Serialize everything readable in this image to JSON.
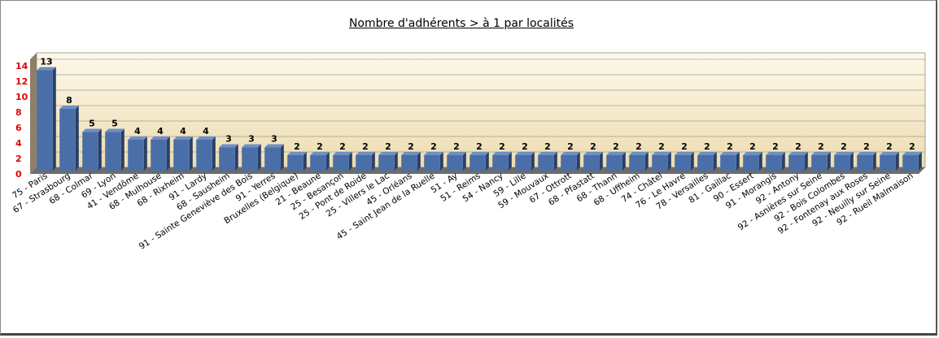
{
  "chart_data": {
    "type": "bar",
    "title": "Nombre d'adhérents  > à 1 par localités",
    "xlabel": "",
    "ylabel": "",
    "ylim": [
      0,
      14
    ],
    "yticks": [
      "0",
      "2",
      "4",
      "6",
      "8",
      "10",
      "12",
      "14"
    ],
    "grid": true,
    "legend": "none",
    "data_labels": true,
    "categories": [
      "75 - Paris",
      "67 - Strasbourg",
      "68 - Colmar",
      "69 - Lyon",
      "41 - Vendôme",
      "68 - Mulhouse",
      "68 - Rixheim",
      "91 - Lardy",
      "68 - Sausheim",
      "91 - Sainte Geneviève des Bois",
      "91 - Yerres",
      "Bruxelles (Belgique)",
      "21 - Beaune",
      "25 - Besançon",
      "25 - Pont de Roide",
      "25 - Villers le Lac",
      "45 - Orléans",
      "45 - Saint Jean de la Ruelle",
      "51 - Ay",
      "51 - Reims",
      "54 - Nancy",
      "59 - Lille",
      "59 - Mouvaux",
      "67 - Ottrott",
      "68 - Pfastatt",
      "68 - Thann",
      "68 - Uffheim",
      "74 - Châtel",
      "76 - Le Havre",
      "78 - Versailles",
      "81 - Gaillac",
      "90 - Essert",
      "91 - Morangis",
      "92 - Antony",
      "92 - Asnières sur Seine",
      "92 - Bois Colombes",
      "92 - Fontenay aux Roses",
      "92 - Neuilly sur Seine",
      "92 - Rueil Malmaison"
    ],
    "values": [
      13,
      8,
      5,
      5,
      4,
      4,
      4,
      4,
      3,
      3,
      3,
      2,
      2,
      2,
      2,
      2,
      2,
      2,
      2,
      2,
      2,
      2,
      2,
      2,
      2,
      2,
      2,
      2,
      2,
      2,
      2,
      2,
      2,
      2,
      2,
      2,
      2,
      2,
      2
    ]
  },
  "colors": {
    "bar_front": "#4a6fa8",
    "bar_side": "#2a3f66",
    "bar_top": "#6f8fc4",
    "plot_bg_top": "#fdf8ea",
    "plot_bg_bottom": "#ecdcb0",
    "back_wall": "#8e7f66",
    "floor": "#6c6c6c",
    "ytick": "#e00000",
    "grid": "#7a7a7a"
  }
}
